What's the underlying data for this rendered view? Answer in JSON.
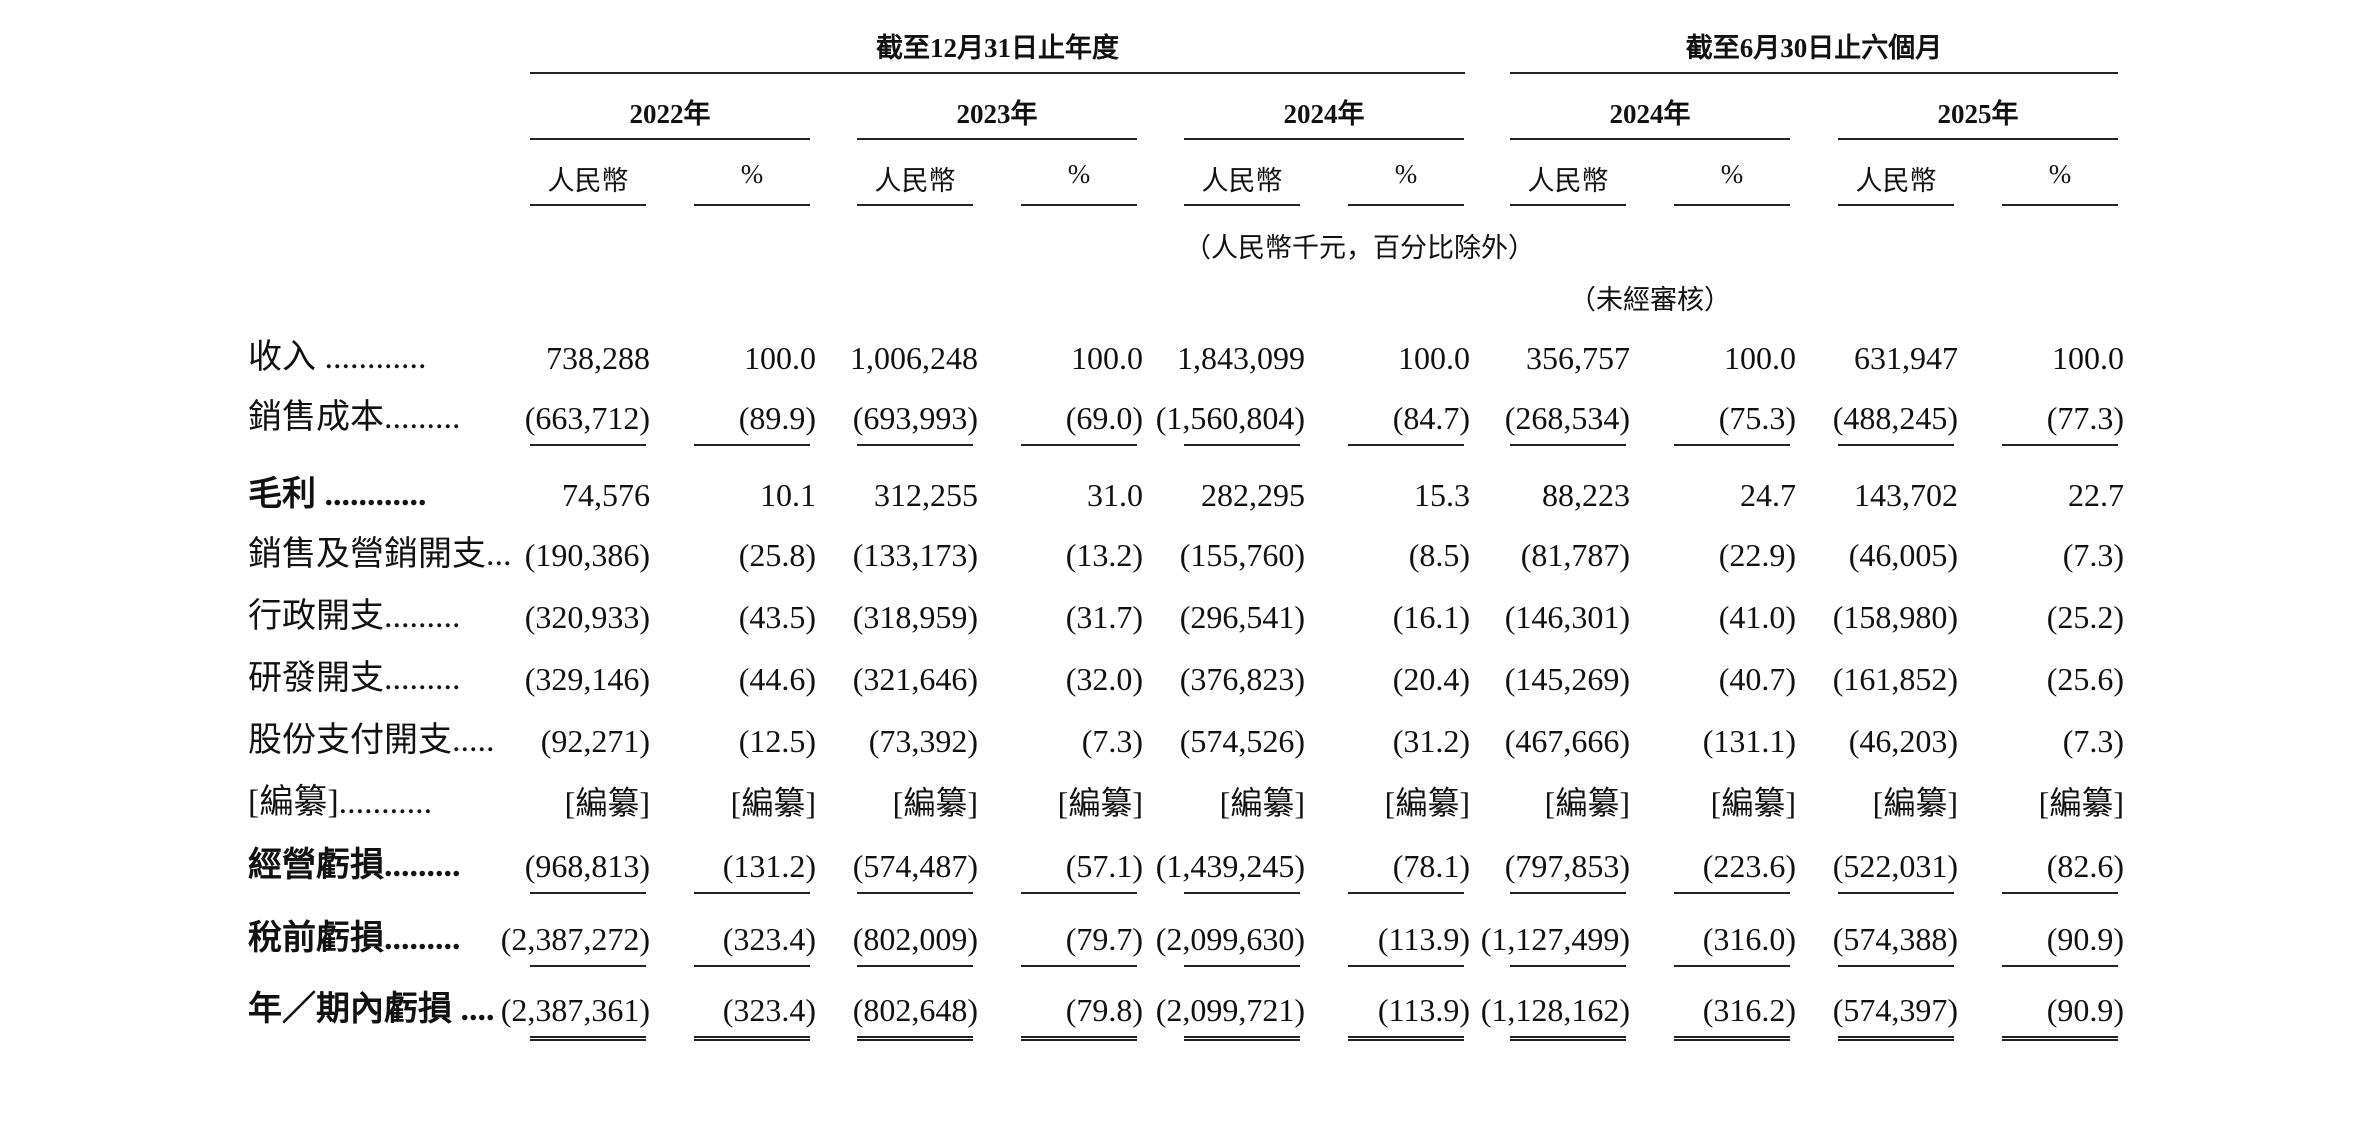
{
  "header": {
    "period_annual": "截至12月31日止年度",
    "period_interim": "截至6月30日止六個月",
    "years": [
      "2022年",
      "2023年",
      "2024年",
      "2024年",
      "2025年"
    ],
    "col_rmb": "人民幣",
    "col_pct": "%",
    "unit_note": "（人民幣千元，百分比除外）",
    "unaudited_note": "（未經審核）"
  },
  "rows": [
    {
      "label": "收入 ............",
      "values": [
        "738,288",
        "100.0",
        "1,006,248",
        "100.0",
        "1,843,099",
        "100.0",
        "356,757",
        "100.0",
        "631,947",
        "100.0"
      ]
    },
    {
      "label": "銷售成本.........",
      "values": [
        "(663,712)",
        "(89.9)",
        "(693,993)",
        "(69.0)",
        "(1,560,804)",
        "(84.7)",
        "(268,534)",
        "(75.3)",
        "(488,245)",
        "(77.3)"
      ]
    },
    {
      "label": "毛利 ............",
      "values": [
        "74,576",
        "10.1",
        "312,255",
        "31.0",
        "282,295",
        "15.3",
        "88,223",
        "24.7",
        "143,702",
        "22.7"
      ]
    },
    {
      "label": "銷售及營銷開支...",
      "values": [
        "(190,386)",
        "(25.8)",
        "(133,173)",
        "(13.2)",
        "(155,760)",
        "(8.5)",
        "(81,787)",
        "(22.9)",
        "(46,005)",
        "(7.3)"
      ]
    },
    {
      "label": "行政開支.........",
      "values": [
        "(320,933)",
        "(43.5)",
        "(318,959)",
        "(31.7)",
        "(296,541)",
        "(16.1)",
        "(146,301)",
        "(41.0)",
        "(158,980)",
        "(25.2)"
      ]
    },
    {
      "label": "研發開支.........",
      "values": [
        "(329,146)",
        "(44.6)",
        "(321,646)",
        "(32.0)",
        "(376,823)",
        "(20.4)",
        "(145,269)",
        "(40.7)",
        "(161,852)",
        "(25.6)"
      ]
    },
    {
      "label": "股份支付開支.....",
      "values": [
        "(92,271)",
        "(12.5)",
        "(73,392)",
        "(7.3)",
        "(574,526)",
        "(31.2)",
        "(467,666)",
        "(131.1)",
        "(46,203)",
        "(7.3)"
      ]
    },
    {
      "label": "[編纂]...........",
      "values": [
        "[編纂]",
        "[編纂]",
        "[編纂]",
        "[編纂]",
        "[編纂]",
        "[編纂]",
        "[編纂]",
        "[編纂]",
        "[編纂]",
        "[編纂]"
      ]
    },
    {
      "label": "經營虧損.........",
      "values": [
        "(968,813)",
        "(131.2)",
        "(574,487)",
        "(57.1)",
        "(1,439,245)",
        "(78.1)",
        "(797,853)",
        "(223.6)",
        "(522,031)",
        "(82.6)"
      ]
    },
    {
      "label": "稅前虧損.........",
      "values": [
        "(2,387,272)",
        "(323.4)",
        "(802,009)",
        "(79.7)",
        "(2,099,630)",
        "(113.9)",
        "(1,127,499)",
        "(316.0)",
        "(574,388)",
        "(90.9)"
      ]
    },
    {
      "label": "年／期內虧損 ....",
      "values": [
        "(2,387,361)",
        "(323.4)",
        "(802,648)",
        "(79.8)",
        "(2,099,721)",
        "(113.9)",
        "(1,128,162)",
        "(316.2)",
        "(574,397)",
        "(90.9)"
      ]
    }
  ]
}
